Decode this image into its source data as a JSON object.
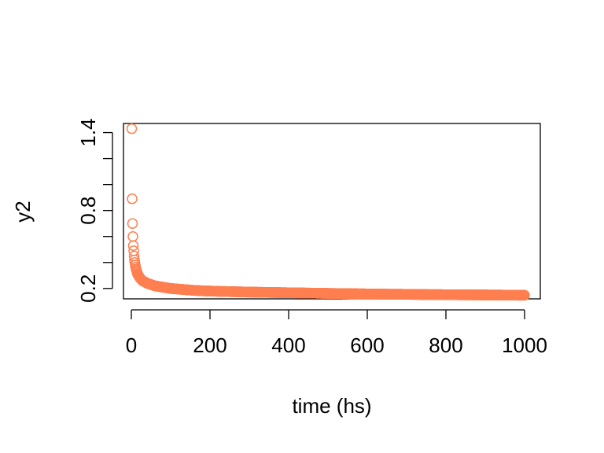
{
  "chart_data": {
    "type": "scatter",
    "title": "",
    "xlabel": "time (hs)",
    "ylabel": "y2",
    "xlim": [
      -20,
      1040
    ],
    "ylim": [
      0.12,
      1.47
    ],
    "x_ticks": [
      0,
      200,
      400,
      600,
      800,
      1000
    ],
    "x_tick_labels": [
      "0",
      "200",
      "400",
      "600",
      "800",
      "1000"
    ],
    "y_ticks": [
      0.2,
      0.4,
      0.6,
      0.8,
      1.0,
      1.2,
      1.4
    ],
    "y_tick_labels": [
      "0.2",
      "",
      "",
      "0.8",
      "",
      "",
      "1.4"
    ],
    "point_color": "#FF7F50",
    "marker": "open-circle",
    "grid": false,
    "series": [
      {
        "x": [
          1,
          2,
          3,
          4,
          5,
          6,
          7,
          8,
          9,
          10,
          12,
          14,
          16,
          18,
          20,
          22,
          25,
          28,
          31,
          35,
          40,
          45,
          50,
          60,
          70,
          80,
          90,
          100,
          120,
          140,
          160,
          180,
          200,
          230,
          260,
          300,
          340,
          380,
          420,
          460,
          500,
          550,
          600,
          650,
          700,
          750,
          800,
          850,
          900,
          950,
          1000
        ],
        "y": [
          1.43,
          0.89,
          0.7,
          0.6,
          0.53,
          0.49,
          0.45,
          0.42,
          0.4,
          0.38,
          0.35,
          0.33,
          0.31,
          0.3,
          0.29,
          0.28,
          0.27,
          0.26,
          0.255,
          0.25,
          0.24,
          0.235,
          0.23,
          0.22,
          0.215,
          0.21,
          0.205,
          0.2,
          0.195,
          0.19,
          0.185,
          0.182,
          0.18,
          0.177,
          0.175,
          0.172,
          0.17,
          0.168,
          0.166,
          0.164,
          0.162,
          0.16,
          0.158,
          0.156,
          0.155,
          0.153,
          0.152,
          0.151,
          0.15,
          0.149,
          0.148
        ]
      }
    ]
  }
}
